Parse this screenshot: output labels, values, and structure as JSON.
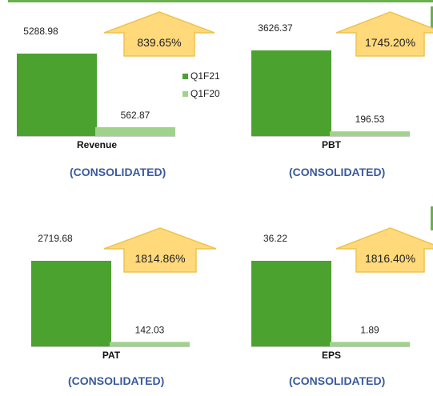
{
  "colors": {
    "q1f21": "#4ca22f",
    "q1f20": "#9fd38a",
    "arrow_fill": "#ffd97a",
    "arrow_stroke": "#f0c24f",
    "consolidated_text": "#3a5a9c",
    "accent_rule": "#6ab04c"
  },
  "legend": [
    {
      "name": "Q1F21",
      "color": "#4ca22f"
    },
    {
      "name": "Q1F20",
      "color": "#9fd38a"
    }
  ],
  "chart_data": [
    {
      "type": "bar",
      "category": "Revenue",
      "series": [
        {
          "name": "Q1F21",
          "values": [
            5288.98
          ]
        },
        {
          "name": "Q1F20",
          "values": [
            562.87
          ]
        }
      ],
      "value_labels": [
        "5288.98",
        "562.87"
      ],
      "growth": "839.65%",
      "caption": "(CONSOLIDATED)"
    },
    {
      "type": "bar",
      "category": "PBT",
      "series": [
        {
          "name": "Q1F21",
          "values": [
            3626.37
          ]
        },
        {
          "name": "Q1F20",
          "values": [
            196.53
          ]
        }
      ],
      "value_labels": [
        "3626.37",
        "196.53"
      ],
      "growth": "1745.20%",
      "caption": "(CONSOLIDATED)"
    },
    {
      "type": "bar",
      "category": "PAT",
      "series": [
        {
          "name": "Q1F21",
          "values": [
            2719.68
          ]
        },
        {
          "name": "Q1F20",
          "values": [
            142.03
          ]
        }
      ],
      "value_labels": [
        "2719.68",
        "142.03"
      ],
      "growth": "1814.86%",
      "caption": "(CONSOLIDATED)"
    },
    {
      "type": "bar",
      "category": "EPS",
      "series": [
        {
          "name": "Q1F21",
          "values": [
            36.22
          ]
        },
        {
          "name": "Q1F20",
          "values": [
            1.89
          ]
        }
      ],
      "value_labels": [
        "36.22",
        "1.89"
      ],
      "growth": "1816.40%",
      "caption": "(CONSOLIDATED)"
    }
  ]
}
